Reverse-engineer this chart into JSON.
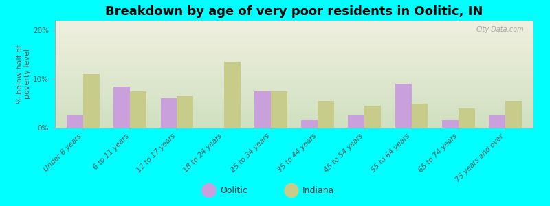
{
  "title": "Breakdown by age of very poor residents in Oolitic, IN",
  "ylabel": "% below half of\npoverty level",
  "categories": [
    "Under 6 years",
    "6 to 11 years",
    "12 to 17 years",
    "18 to 24 years",
    "25 to 34 years",
    "35 to 44 years",
    "45 to 54 years",
    "55 to 64 years",
    "65 to 74 years",
    "75 years and over"
  ],
  "oolitic_values": [
    2.5,
    8.5,
    6.0,
    0.0,
    7.5,
    1.5,
    2.5,
    9.0,
    1.5,
    2.5
  ],
  "indiana_values": [
    11.0,
    7.5,
    6.5,
    13.5,
    7.5,
    5.5,
    4.5,
    5.0,
    4.0,
    5.5
  ],
  "oolitic_color": "#c9a0dc",
  "indiana_color": "#c8cc8a",
  "background_color": "#00ffff",
  "plot_bg_top": "#f0f0e0",
  "plot_bg_bottom": "#d0e0c0",
  "ylim": [
    0,
    22
  ],
  "yticks": [
    0,
    10,
    20
  ],
  "ytick_labels": [
    "0%",
    "10%",
    "20%"
  ],
  "title_fontsize": 13,
  "axis_label_fontsize": 8,
  "tick_label_fontsize": 7.5,
  "legend_fontsize": 9,
  "bar_width": 0.35,
  "watermark": "City-Data.com"
}
